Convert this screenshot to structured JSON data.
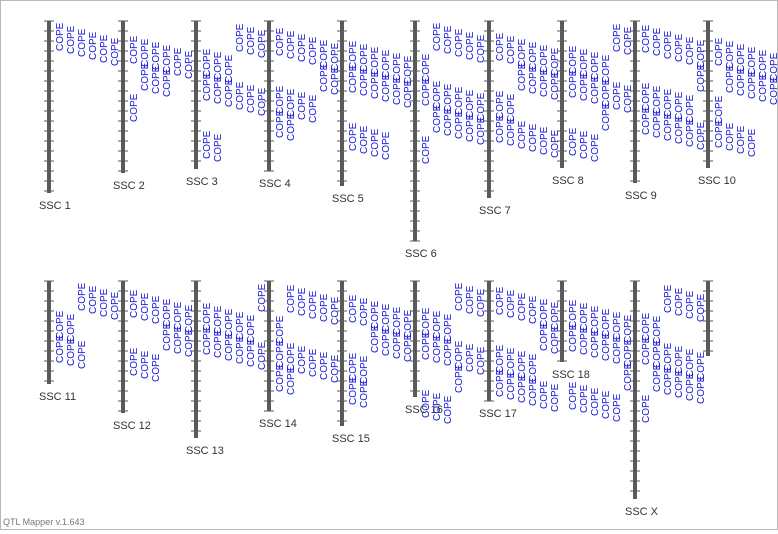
{
  "chromosomes": [
    {
      "label": "SSC 1",
      "qtl": [
        "COPE",
        "COPE",
        "COPE",
        "COPE",
        "COPE",
        "COPE"
      ]
    },
    {
      "label": "SSC 2",
      "qtl": [
        "COPE",
        "COPE",
        "COPE",
        "COPE",
        "COPE",
        "COPE",
        "COPE",
        "COPE",
        "COPE",
        "COPE"
      ]
    },
    {
      "label": "SSC 3",
      "qtl": [
        "COPE",
        "COPE",
        "COPE",
        "COPE",
        "COPE",
        "COPE",
        "COPE",
        "COPE",
        "COPE",
        "COPE",
        "COPE",
        "COPE",
        "COPE",
        "COPE"
      ]
    },
    {
      "label": "SSC 4",
      "qtl": [
        "COPE",
        "COPE",
        "COPE",
        "COPE",
        "COPE",
        "COPE",
        "COPE",
        "COPE",
        "COPE",
        "COPE",
        "COPE",
        "COPE",
        "COPE",
        "COPE"
      ]
    },
    {
      "label": "SSC 5",
      "qtl": [
        "COPE",
        "COPE",
        "COPE",
        "COPE",
        "COPE",
        "COPE",
        "COPE",
        "COPE",
        "COPE",
        "COPE",
        "COPE",
        "COPE",
        "COPE",
        "COPE",
        "COPE",
        "COPE"
      ]
    },
    {
      "label": "SSC 6",
      "qtl": [
        "COPE",
        "COPE",
        "COPE",
        "COPE",
        "COPE",
        "COPE",
        "COPE",
        "COPE",
        "COPE",
        "COPE",
        "COPE",
        "COPE",
        "COPE",
        "COPE",
        "COPE",
        "COPE",
        "COPE",
        "COPE"
      ]
    },
    {
      "label": "SSC 7",
      "qtl": [
        "COPE",
        "COPE",
        "COPE",
        "COPE",
        "COPE",
        "COPE",
        "COPE",
        "COPE",
        "COPE",
        "COPE",
        "COPE",
        "COPE",
        "COPE",
        "COPE",
        "COPE",
        "COPE",
        "COPE",
        "COPE"
      ]
    },
    {
      "label": "SSC 8",
      "qtl": [
        "COPE",
        "COPE",
        "COPE",
        "COPE",
        "COPE",
        "COPE",
        "COPE",
        "COPE",
        "COPE",
        "COPE",
        "COPE",
        "COPE",
        "COPE",
        "COPE",
        "COPE",
        "COPE"
      ]
    },
    {
      "label": "SSC 9",
      "qtl": [
        "COPE",
        "COPE",
        "COPE",
        "COPE",
        "COPE",
        "COPE",
        "COPE",
        "COPE",
        "COPE",
        "COPE",
        "COPE",
        "COPE",
        "COPE",
        "COPE",
        "COPE",
        "COPE",
        "COPE",
        "COPE"
      ]
    },
    {
      "label": "SSC 10",
      "qtl": [
        "COPE",
        "COPE",
        "COPE",
        "COPE",
        "COPE",
        "COPE",
        "COPE",
        "COPE",
        "COPE",
        "COPE",
        "COPE",
        "COPE",
        "COPE",
        "COPE",
        "COPE",
        "COPE"
      ]
    },
    {
      "label": "SSC 11",
      "qtl": [
        "COPE",
        "COPE",
        "COPE",
        "COPE",
        "COPE",
        "COPE",
        "COPE",
        "COPE",
        "COPE"
      ]
    },
    {
      "label": "SSC 12",
      "qtl": [
        "COPE",
        "COPE",
        "COPE",
        "COPE",
        "COPE",
        "COPE",
        "COPE",
        "COPE",
        "COPE",
        "COPE",
        "COPE",
        "COPE"
      ]
    },
    {
      "label": "SSC 13",
      "qtl": [
        "COPE",
        "COPE",
        "COPE",
        "COPE",
        "COPE",
        "COPE",
        "COPE",
        "COPE",
        "COPE",
        "COPE",
        "COPE",
        "COPE"
      ]
    },
    {
      "label": "SSC 14",
      "qtl": [
        "COPE",
        "COPE",
        "COPE",
        "COPE",
        "COPE",
        "COPE",
        "COPE",
        "COPE",
        "COPE",
        "COPE",
        "COPE",
        "COPE",
        "COPE",
        "COPE"
      ]
    },
    {
      "label": "SSC 15",
      "qtl": [
        "COPE",
        "COPE",
        "COPE",
        "COPE",
        "COPE",
        "COPE",
        "COPE",
        "COPE",
        "COPE",
        "COPE",
        "COPE",
        "COPE",
        "COPE",
        "COPE"
      ]
    },
    {
      "label": "SSC 16",
      "qtl": [
        "COPE",
        "COPE",
        "COPE",
        "COPE",
        "COPE",
        "COPE",
        "COPE",
        "COPE",
        "COPE",
        "COPE",
        "COPE",
        "COPE",
        "COPE",
        "COPE",
        "COPE",
        "COPE"
      ]
    },
    {
      "label": "SSC 17",
      "qtl": [
        "COPE",
        "COPE",
        "COPE",
        "COPE",
        "COPE",
        "COPE",
        "COPE",
        "COPE",
        "COPE",
        "COPE",
        "COPE",
        "COPE",
        "COPE",
        "COPE",
        "COPE",
        "COPE",
        "COPE",
        "COPE"
      ]
    },
    {
      "label": "SSC 18",
      "qtl": [
        "COPE",
        "COPE",
        "COPE",
        "COPE",
        "COPE",
        "COPE",
        "COPE",
        "COPE",
        "COPE",
        "COPE",
        "COPE",
        "COPE",
        "COPE",
        "COPE",
        "COPE",
        "COPE",
        "COPE",
        "COPE"
      ]
    },
    {
      "label": "SSC X",
      "qtl": [
        "COPE",
        "COPE",
        "COPE",
        "COPE",
        "COPE",
        "COPE",
        "COPE",
        "COPE",
        "COPE",
        "COPE",
        "COPE",
        "COPE",
        "COPE",
        "COPE",
        "COPE",
        "COPE",
        "COPE",
        "COPE"
      ]
    }
  ],
  "footer": "QTL Mapper v.1.643"
}
